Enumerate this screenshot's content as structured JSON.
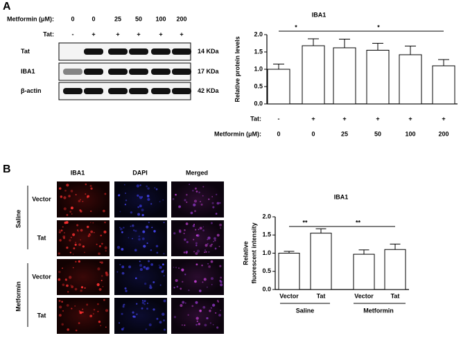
{
  "panel_a": {
    "label": "A",
    "blot": {
      "metformin_label": "Metformin (μM):",
      "metformin_doses": [
        "0",
        "0",
        "25",
        "50",
        "100",
        "200"
      ],
      "tat_label": "Tat:",
      "tat_states": [
        "-",
        "+",
        "+",
        "+",
        "+",
        "+"
      ],
      "rows": [
        {
          "name": "Tat",
          "size": "14 KDa"
        },
        {
          "name": "IBA1",
          "size": "17 KDa"
        },
        {
          "name": "β-actin",
          "size": "42 KDa"
        }
      ]
    }
  },
  "panel_b": {
    "label": "B",
    "columns": [
      "IBA1",
      "DAPI",
      "Merged"
    ],
    "groups": [
      {
        "name": "Saline",
        "rows": [
          "Vector",
          "Tat"
        ]
      },
      {
        "name": "Metformin",
        "rows": [
          "Vector",
          "Tat"
        ]
      }
    ]
  },
  "chart_data": [
    {
      "type": "bar",
      "title": "IBA1",
      "y_label": "Relative protein levels",
      "categories": [
        null,
        null,
        null,
        null,
        null,
        null
      ],
      "x_rows": [
        {
          "label": "Tat:",
          "values": [
            "-",
            "+",
            "+",
            "+",
            "+",
            "+"
          ]
        },
        {
          "label": "Metformin (μM):",
          "values": [
            "0",
            "0",
            "25",
            "50",
            "100",
            "200"
          ]
        }
      ],
      "values": [
        1.0,
        1.68,
        1.62,
        1.55,
        1.42,
        1.1
      ],
      "errors": [
        0.15,
        0.2,
        0.25,
        0.2,
        0.25,
        0.18
      ],
      "color": "#ffffff",
      "ylim": [
        0,
        2
      ],
      "yticks": [
        {
          "value": 0,
          "label": "0.0"
        },
        {
          "value": 0.5,
          "label": "0.5"
        },
        {
          "value": 1,
          "label": "1.0"
        },
        {
          "value": 1.5,
          "label": "1.5"
        },
        {
          "value": 2,
          "label": "2.0"
        }
      ],
      "annotations": [
        "*",
        "*"
      ]
    },
    {
      "type": "bar",
      "title": "IBA1",
      "y_label": [
        "Relative",
        "fluorescent intensity"
      ],
      "categories": [
        "Vector",
        "Tat",
        "Vector",
        "Tat"
      ],
      "groups": [
        "Saline",
        "Metformin"
      ],
      "values": [
        1.0,
        1.55,
        0.97,
        1.1
      ],
      "errors": [
        0.05,
        0.12,
        0.12,
        0.15
      ],
      "color": "#ffffff",
      "ylim": [
        0,
        2
      ],
      "yticks": [
        {
          "value": 0,
          "label": "0.0"
        },
        {
          "value": 0.5,
          "label": "0.5"
        },
        {
          "value": 1,
          "label": "1.0"
        },
        {
          "value": 1.5,
          "label": "1.5"
        },
        {
          "value": 2,
          "label": "2.0"
        }
      ],
      "annotations": [
        "**",
        "**"
      ]
    }
  ]
}
